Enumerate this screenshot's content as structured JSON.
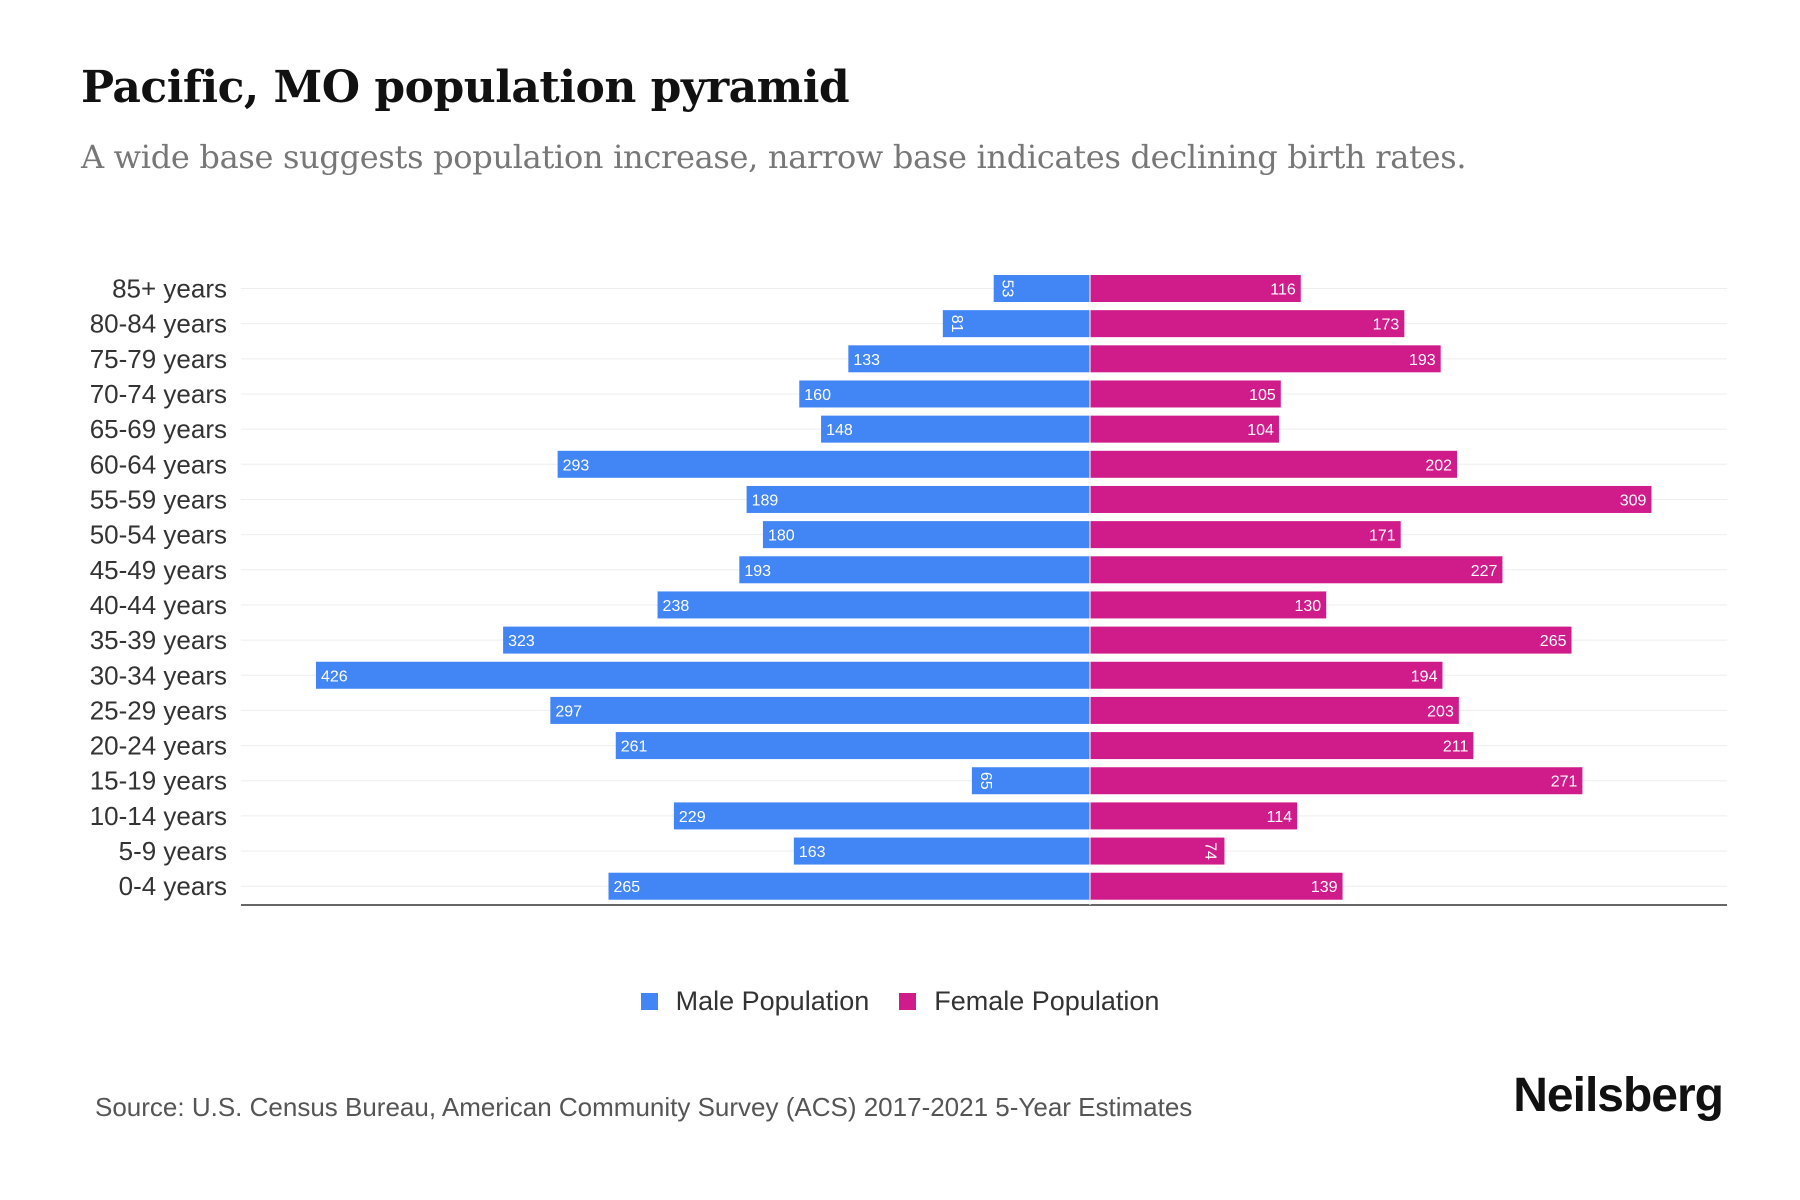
{
  "title": "Pacific, MO population pyramid",
  "subtitle": "A wide base suggests population increase, narrow base indicates declining birth rates.",
  "source": "Source: U.S. Census Bureau, American Community Survey (ACS) 2017-2021 5-Year Estimates",
  "logo": "Neilsberg",
  "colors": {
    "male": "#4285f4",
    "female": "#d01c8b"
  },
  "chart_data": {
    "type": "bar",
    "orientation": "horizontal-pyramid",
    "categories": [
      "85+ years",
      "80-84 years",
      "75-79 years",
      "70-74 years",
      "65-69 years",
      "60-64 years",
      "55-59 years",
      "50-54 years",
      "45-49 years",
      "40-44 years",
      "35-39 years",
      "30-34 years",
      "25-29 years",
      "20-24 years",
      "15-19 years",
      "10-14 years",
      "5-9 years",
      "0-4 years"
    ],
    "series": [
      {
        "name": "Male Population",
        "values": [
          53,
          81,
          133,
          160,
          148,
          293,
          189,
          180,
          193,
          238,
          323,
          426,
          297,
          261,
          65,
          229,
          163,
          265
        ]
      },
      {
        "name": "Female Population",
        "values": [
          116,
          173,
          193,
          105,
          104,
          202,
          309,
          171,
          227,
          130,
          265,
          194,
          203,
          211,
          271,
          114,
          74,
          139
        ]
      }
    ],
    "xlim": [
      -470,
      350
    ],
    "legend": "bottom-center",
    "grid": true
  }
}
